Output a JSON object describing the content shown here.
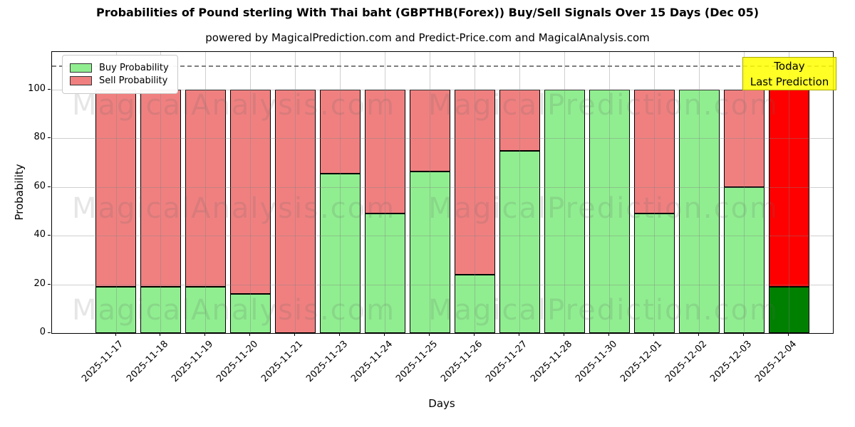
{
  "chart_data": {
    "type": "bar",
    "stacked": true,
    "title": "Probabilities of Pound sterling With Thai baht (GBPTHB(Forex)) Buy/Sell Signals Over 15 Days (Dec 05)",
    "subtitle": "powered by MagicalPrediction.com and Predict-Price.com and MagicalAnalysis.com",
    "xlabel": "Days",
    "ylabel": "Probability",
    "ylim": [
      0,
      115.5
    ],
    "yticks": [
      0,
      20,
      40,
      60,
      80,
      100
    ],
    "grid": true,
    "legend_position": "upper-left",
    "dashed_guide_y": 110,
    "categories": [
      "2025-11-17",
      "2025-11-18",
      "2025-11-19",
      "2025-11-20",
      "2025-11-21",
      "2025-11-23",
      "2025-11-24",
      "2025-11-25",
      "2025-11-26",
      "2025-11-27",
      "2025-11-28",
      "2025-11-30",
      "2025-12-01",
      "2025-12-02",
      "2025-12-03",
      "2025-12-04"
    ],
    "series": [
      {
        "name": "Buy Probability",
        "color": "#90ee90",
        "values": [
          19,
          19,
          19,
          16,
          0,
          65.5,
          49,
          66.5,
          24,
          75,
          100,
          100,
          49,
          100,
          60,
          19
        ]
      },
      {
        "name": "Sell Probability",
        "color": "#f08080",
        "values": [
          81,
          81,
          81,
          84,
          100,
          34.5,
          51,
          33.5,
          76,
          25,
          0,
          0,
          51,
          0,
          40,
          81
        ]
      }
    ],
    "today_bar": {
      "category": "2025-12-04",
      "buy_color": "#008000",
      "sell_color": "#ff0000"
    }
  },
  "annotation": {
    "line1": "Today",
    "line2": "Last Prediction",
    "bg_color": "#ffff00"
  },
  "watermarks": {
    "left_text": "MagicalAnalysis.com",
    "right_text": "MagicalPrediction.com"
  },
  "colors": {
    "bar_edge": "#000000",
    "grid": "#b0b0b0",
    "dashed_guide": "#7e7e7e"
  }
}
